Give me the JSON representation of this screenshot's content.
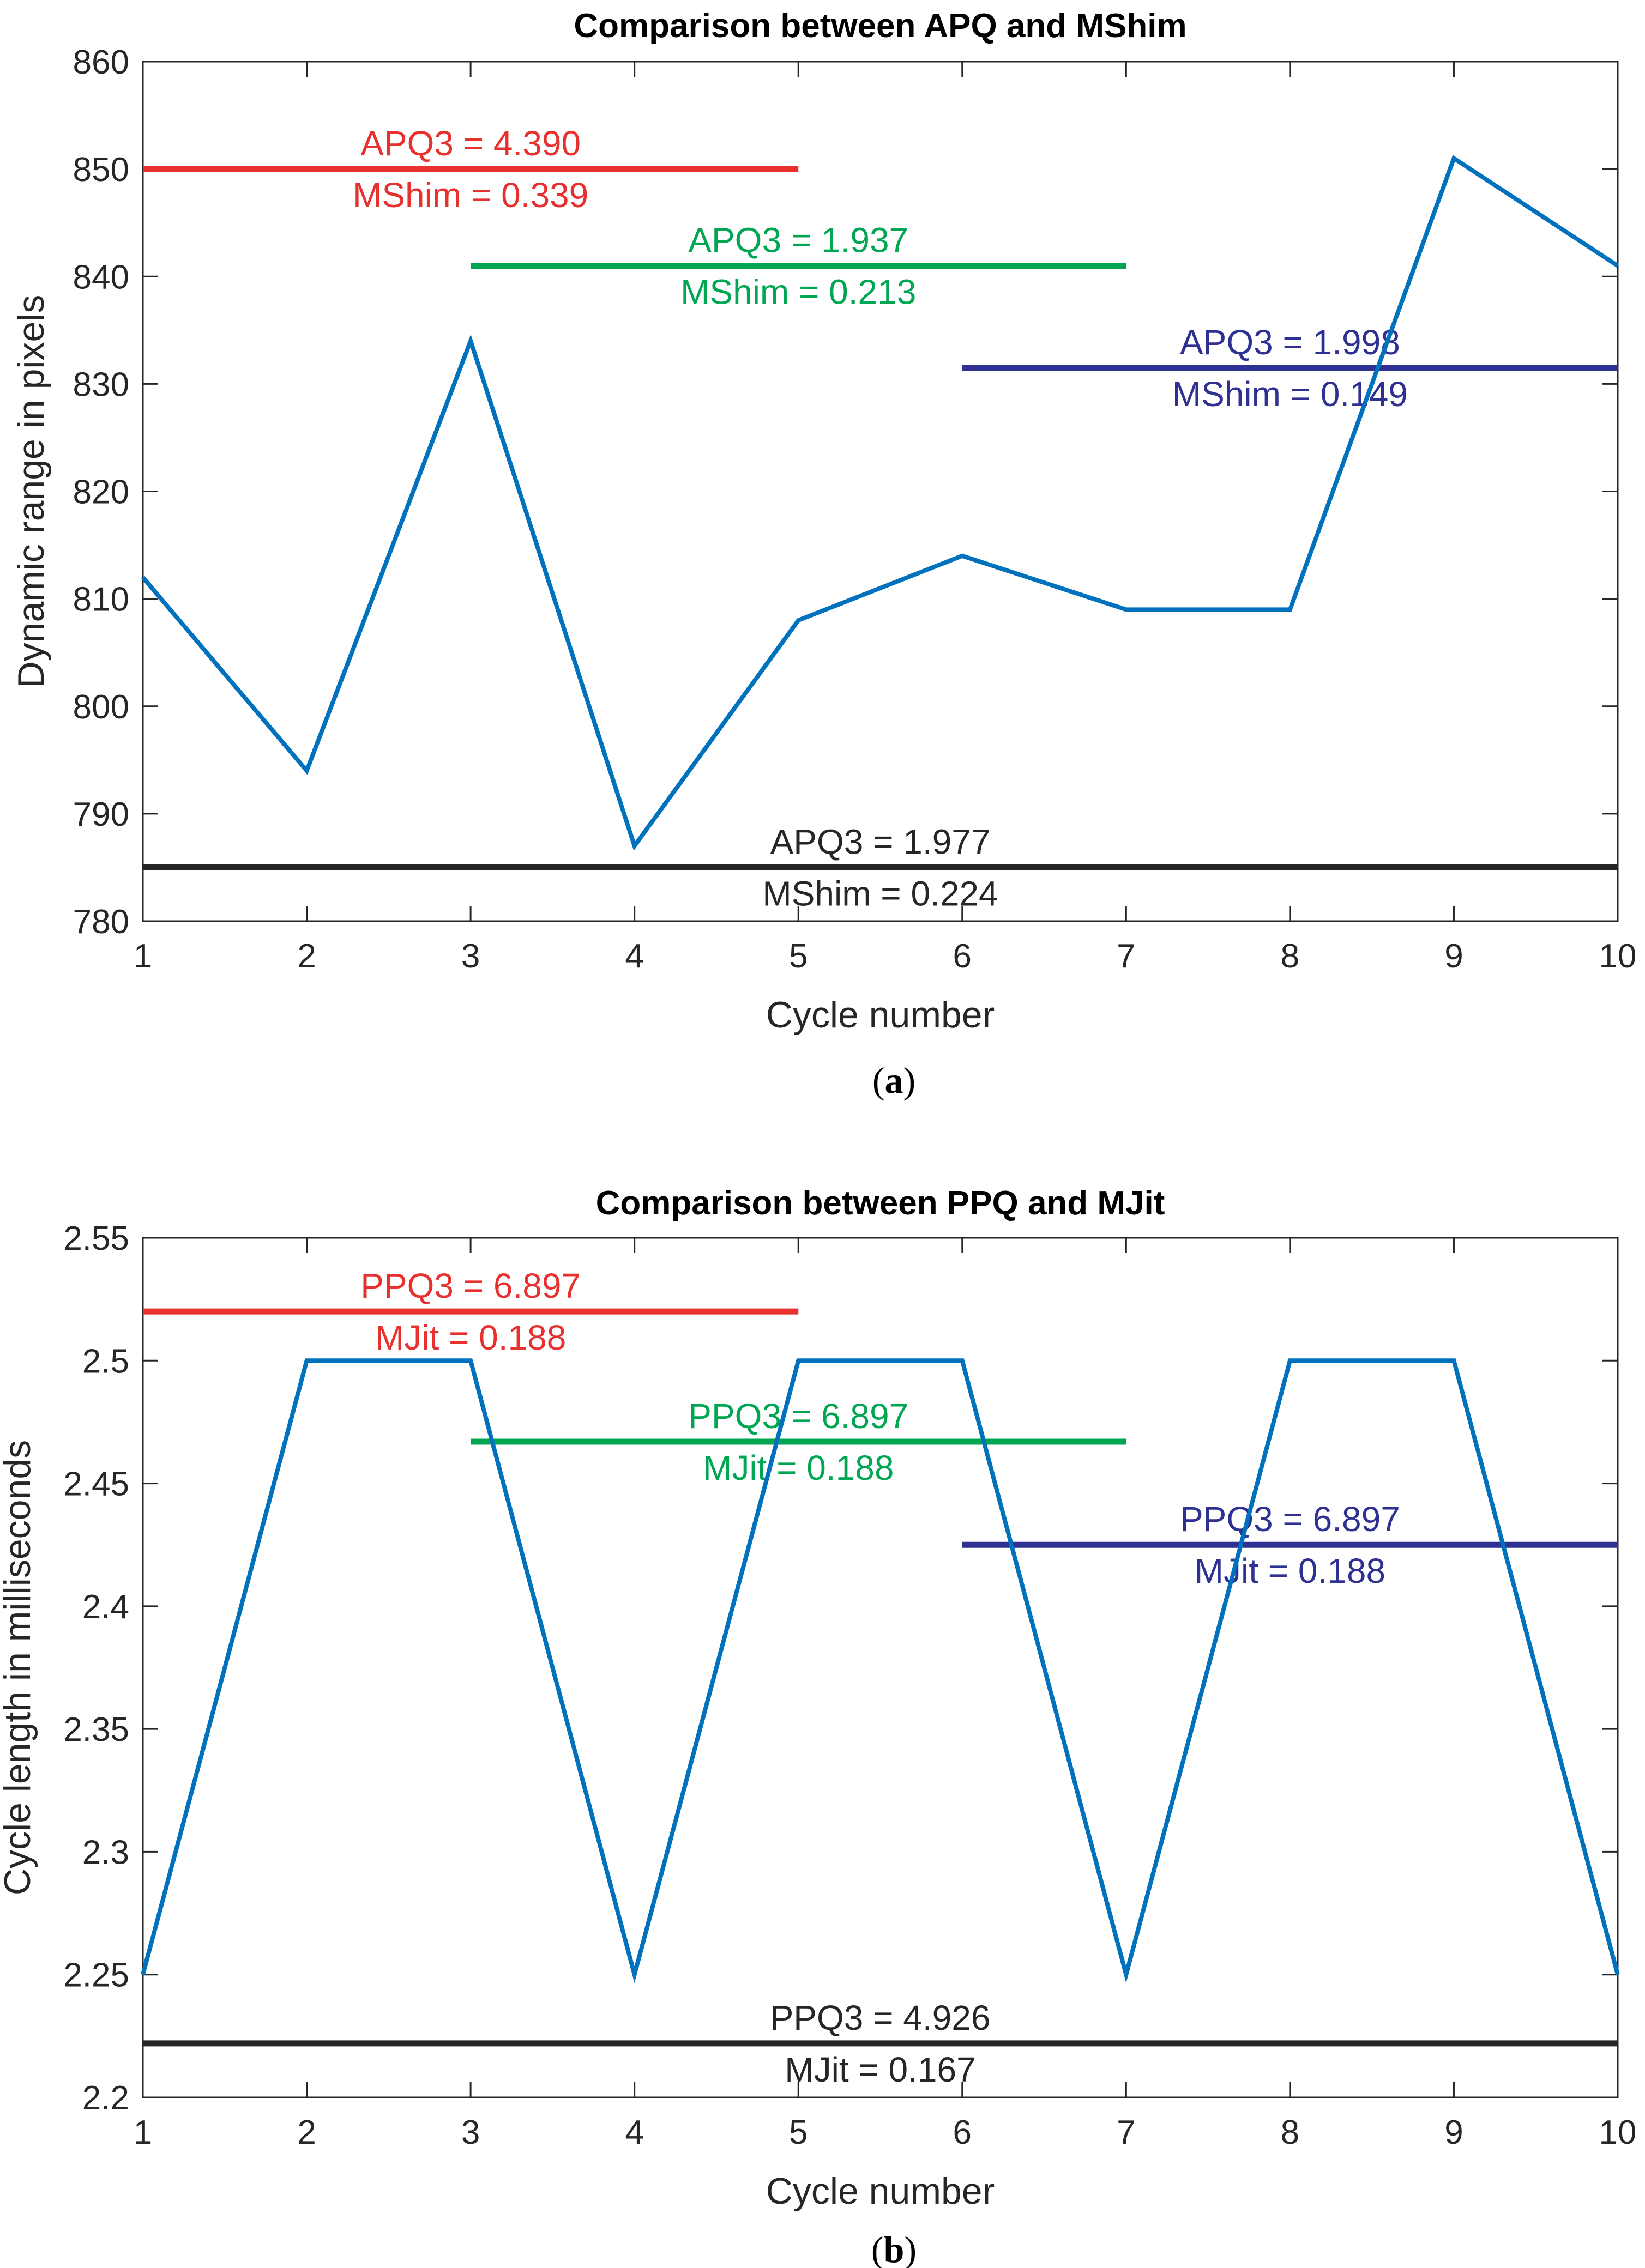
{
  "chart_data": [
    {
      "type": "line",
      "panel_label": "a",
      "title": "Comparison between APQ and MShim",
      "xlabel": "Cycle number",
      "ylabel": "Dynamic range in pixels",
      "xlim": [
        1,
        10
      ],
      "ylim": [
        780,
        860
      ],
      "xticks": [
        1,
        2,
        3,
        4,
        5,
        6,
        7,
        8,
        9,
        10
      ],
      "yticks": [
        780,
        790,
        800,
        810,
        820,
        830,
        840,
        850,
        860
      ],
      "tick_decimals": 0,
      "line_color": "#0072BD",
      "series": [
        {
          "name": "Dynamic range",
          "x": [
            1,
            2,
            3,
            4,
            5,
            6,
            7,
            8,
            9,
            10
          ],
          "values": [
            812,
            794,
            834,
            787,
            808,
            814,
            809,
            809,
            851,
            841
          ]
        }
      ],
      "reference_lines": [
        {
          "x_start": 1,
          "x_end": 5,
          "y": 850,
          "color": "#E8312F",
          "label_top": "APQ3 = 4.390",
          "label_bottom": "MShim = 0.339"
        },
        {
          "x_start": 3,
          "x_end": 7,
          "y": 841,
          "color": "#00A651",
          "label_top": "APQ3 = 1.937",
          "label_bottom": "MShim = 0.213"
        },
        {
          "x_start": 6,
          "x_end": 10,
          "y": 831.5,
          "color": "#2E3192",
          "label_top": "APQ3 = 1.998",
          "label_bottom": "MShim = 0.149"
        },
        {
          "x_start": 1,
          "x_end": 10,
          "y": 785,
          "color": "#262626",
          "label_top": "APQ3 = 1.977",
          "label_bottom": "MShim = 0.224"
        }
      ]
    },
    {
      "type": "line",
      "panel_label": "b",
      "title": "Comparison between PPQ and MJit",
      "xlabel": "Cycle number",
      "ylabel": "Cycle length in milliseconds",
      "xlim": [
        1,
        10
      ],
      "ylim": [
        2.2,
        2.55
      ],
      "xticks": [
        1,
        2,
        3,
        4,
        5,
        6,
        7,
        8,
        9,
        10
      ],
      "yticks": [
        2.2,
        2.25,
        2.3,
        2.35,
        2.4,
        2.45,
        2.5,
        2.55
      ],
      "tick_labels_y": [
        "2.2",
        "2.25",
        "2.3",
        "2.35",
        "2.4",
        "2.45",
        "2.5",
        "2.55"
      ],
      "line_color": "#0072BD",
      "series": [
        {
          "name": "Cycle length",
          "x": [
            1,
            2,
            3,
            4,
            5,
            6,
            7,
            8,
            9,
            10
          ],
          "values": [
            2.25,
            2.5,
            2.5,
            2.25,
            2.5,
            2.5,
            2.25,
            2.5,
            2.5,
            2.25
          ]
        }
      ],
      "reference_lines": [
        {
          "x_start": 1,
          "x_end": 5,
          "y": 2.52,
          "color": "#E8312F",
          "label_top": "PPQ3 = 6.897",
          "label_bottom": "MJit = 0.188"
        },
        {
          "x_start": 3,
          "x_end": 7,
          "y": 2.467,
          "color": "#00A651",
          "label_top": "PPQ3 = 6.897",
          "label_bottom": "MJit = 0.188"
        },
        {
          "x_start": 6,
          "x_end": 10,
          "y": 2.425,
          "color": "#2E3192",
          "label_top": "PPQ3 = 6.897",
          "label_bottom": "MJit = 0.188"
        },
        {
          "x_start": 1,
          "x_end": 10,
          "y": 2.222,
          "color": "#262626",
          "label_top": "PPQ3 = 4.926",
          "label_bottom": "MJit = 0.167"
        }
      ]
    }
  ]
}
